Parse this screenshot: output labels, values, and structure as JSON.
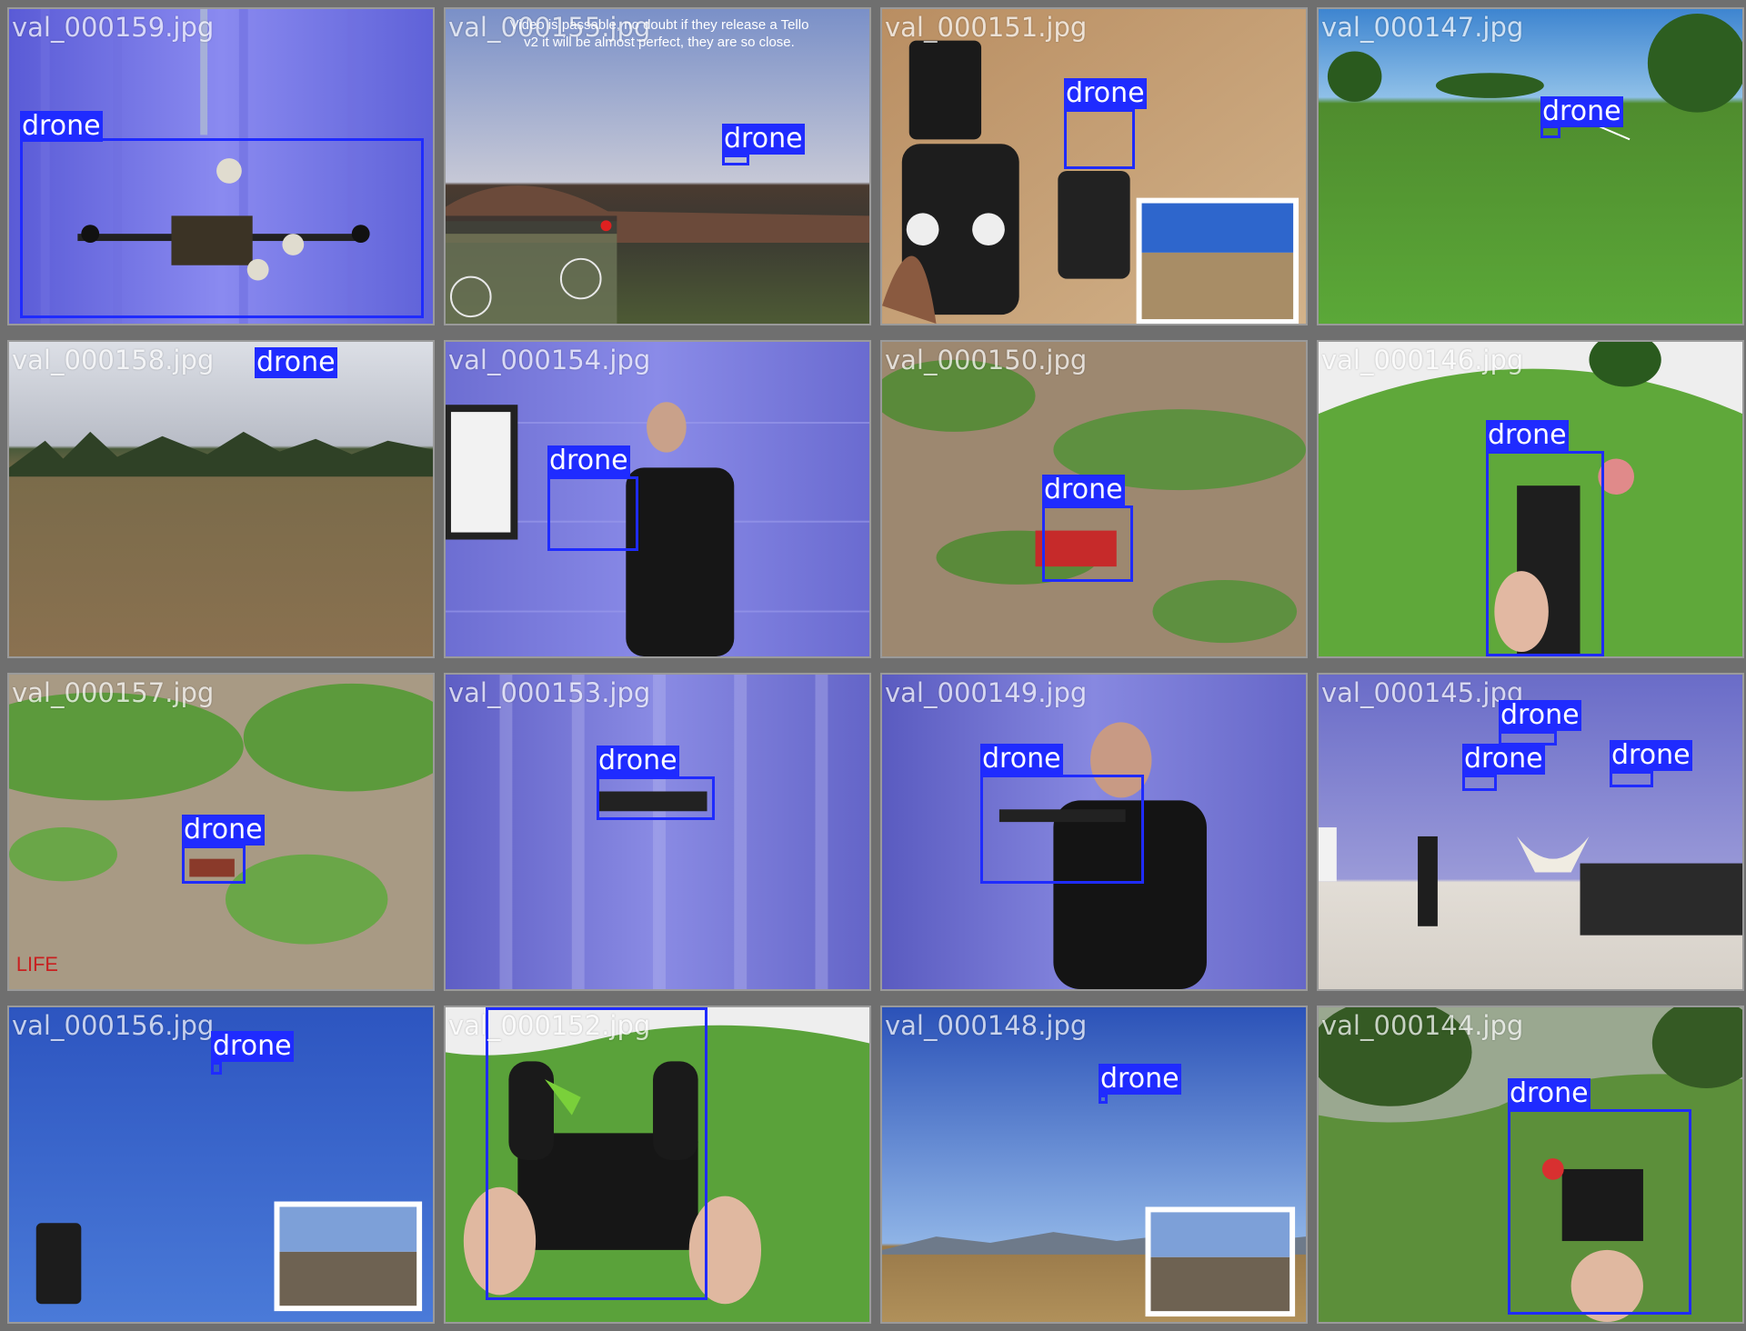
{
  "colors": {
    "background": "#6f6f6f",
    "box": "#1f2bff",
    "label_bg": "#1f2bff",
    "label_text": "#ffffff"
  },
  "tiles": [
    {
      "file": "val_000159.jpg",
      "scene": "purple-curtain-drone-rig",
      "labels": [
        "drone"
      ]
    },
    {
      "file": "val_000155.jpg",
      "scene": "sky-field-app",
      "overlay": "Video is passable, no doubt if they release a Tello v2 it will be almost perfect, they are so close.",
      "labels": [
        "drone"
      ]
    },
    {
      "file": "val_000151.jpg",
      "scene": "sand-controller",
      "labels": [
        "drone"
      ]
    },
    {
      "file": "val_000147.jpg",
      "scene": "grass-park-fisheye",
      "labels": [
        "drone"
      ]
    },
    {
      "file": "val_000158.jpg",
      "scene": "dry-field-trees",
      "labels": [
        "drone"
      ]
    },
    {
      "file": "val_000154.jpg",
      "scene": "curtain-man-holding",
      "labels": [
        "drone"
      ]
    },
    {
      "file": "val_000150.jpg",
      "scene": "dirt-grass-closeup",
      "labels": [
        "drone"
      ]
    },
    {
      "file": "val_000146.jpg",
      "scene": "grass-fisheye-hand",
      "labels": [
        "drone"
      ]
    },
    {
      "file": "val_000157.jpg",
      "scene": "muddy-grass",
      "labels": [
        "drone"
      ]
    },
    {
      "file": "val_000153.jpg",
      "scene": "curtain-drone-flying",
      "labels": [
        "drone"
      ]
    },
    {
      "file": "val_000149.jpg",
      "scene": "curtain-man-closeup",
      "labels": [
        "drone"
      ]
    },
    {
      "file": "val_000145.jpg",
      "scene": "stage-audience",
      "labels": [
        "drone",
        "drone",
        "drone"
      ]
    },
    {
      "file": "val_000156.jpg",
      "scene": "blue-sky-phone",
      "labels": [
        "drone"
      ]
    },
    {
      "file": "val_000152.jpg",
      "scene": "grass-frame-hands",
      "labels": [
        "drone"
      ]
    },
    {
      "file": "val_000148.jpg",
      "scene": "blue-sky-mountains",
      "labels": [
        "drone"
      ]
    },
    {
      "file": "val_000144.jpg",
      "scene": "hill-hand-drone",
      "labels": [
        "drone"
      ]
    }
  ]
}
